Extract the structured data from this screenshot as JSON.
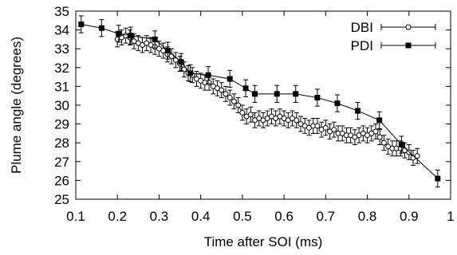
{
  "chart_data": {
    "type": "line",
    "xlabel": "Time after SOI (ms)",
    "ylabel": "Plume angle (degrees)",
    "xlim": [
      0.1,
      1.0
    ],
    "ylim": [
      25,
      35
    ],
    "xticks": [
      "0.1",
      "0.2",
      "0.3",
      "0.4",
      "0.5",
      "0.6",
      "0.7",
      "0.8",
      "0.9",
      "1"
    ],
    "yticks": [
      "25",
      "26",
      "27",
      "28",
      "29",
      "30",
      "31",
      "32",
      "33",
      "34",
      "35"
    ],
    "grid": false,
    "legend_position": "top-right",
    "series": [
      {
        "name": "DBI",
        "marker": "open-circle",
        "color": "#000000",
        "x": [
          0.2,
          0.21,
          0.22,
          0.23,
          0.24,
          0.25,
          0.26,
          0.27,
          0.28,
          0.29,
          0.3,
          0.31,
          0.32,
          0.33,
          0.34,
          0.35,
          0.36,
          0.37,
          0.38,
          0.39,
          0.4,
          0.41,
          0.42,
          0.43,
          0.44,
          0.45,
          0.46,
          0.47,
          0.48,
          0.49,
          0.5,
          0.51,
          0.52,
          0.53,
          0.54,
          0.55,
          0.56,
          0.57,
          0.58,
          0.59,
          0.6,
          0.61,
          0.62,
          0.63,
          0.64,
          0.65,
          0.66,
          0.67,
          0.68,
          0.69,
          0.7,
          0.71,
          0.72,
          0.73,
          0.74,
          0.75,
          0.76,
          0.77,
          0.78,
          0.79,
          0.8,
          0.81,
          0.82,
          0.83,
          0.84,
          0.85,
          0.86,
          0.87,
          0.88,
          0.89,
          0.9,
          0.91,
          0.92
        ],
        "y": [
          33.5,
          33.6,
          33.7,
          33.6,
          33.4,
          33.3,
          33.2,
          33.3,
          33.2,
          33.1,
          33.0,
          32.9,
          32.7,
          32.6,
          32.4,
          32.2,
          31.9,
          31.7,
          31.6,
          31.4,
          31.3,
          31.2,
          31.2,
          31.0,
          30.9,
          30.8,
          30.6,
          30.4,
          30.2,
          30.0,
          29.6,
          29.4,
          29.5,
          29.2,
          29.3,
          29.2,
          29.3,
          29.4,
          29.3,
          29.4,
          29.3,
          29.2,
          29.3,
          29.2,
          29.0,
          28.9,
          28.8,
          28.9,
          28.9,
          28.7,
          28.8,
          28.6,
          28.7,
          28.5,
          28.5,
          28.4,
          28.4,
          28.3,
          28.4,
          28.5,
          28.4,
          28.5,
          28.6,
          28.3,
          28.0,
          27.8,
          27.7,
          27.7,
          27.7,
          27.6,
          27.5,
          27.2,
          27.3
        ],
        "error": 0.4
      },
      {
        "name": "PDI",
        "marker": "filled-square",
        "color": "#000000",
        "x": [
          0.113,
          0.162,
          0.203,
          0.232,
          0.29,
          0.321,
          0.353,
          0.375,
          0.418,
          0.47,
          0.508,
          0.53,
          0.583,
          0.628,
          0.68,
          0.728,
          0.777,
          0.829,
          0.882,
          0.969
        ],
        "y": [
          34.3,
          34.1,
          33.8,
          33.7,
          33.5,
          32.9,
          32.3,
          31.7,
          31.6,
          31.4,
          30.9,
          30.6,
          30.6,
          30.6,
          30.4,
          30.1,
          29.7,
          29.2,
          27.9,
          26.1
        ],
        "error": 0.45
      }
    ]
  }
}
